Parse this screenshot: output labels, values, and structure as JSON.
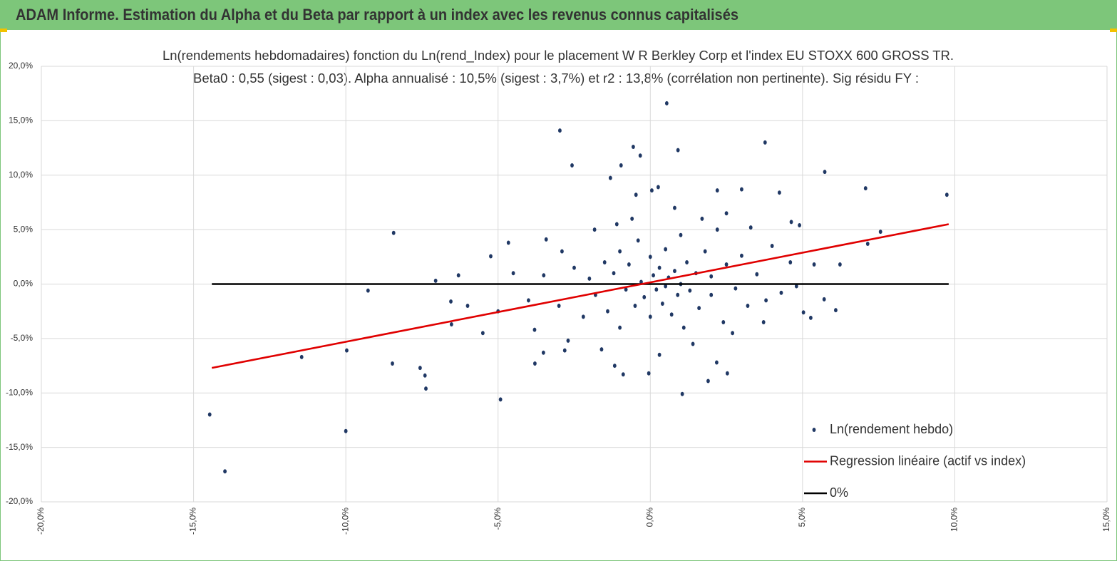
{
  "header": {
    "title": "ADAM Informe. Estimation du Alpha et du Beta par rapport à un index avec les revenus connus capitalisés"
  },
  "chart_data": {
    "type": "scatter",
    "title": "Ln(rendements hebdomadaires) fonction du Ln(rend_Index) pour le placement W R Berkley Corp et l'index EU STOXX 600 GROSS TR.",
    "subtitle": "Beta0 : 0,55  (sigest : 0,03).  Alpha annualisé : 10,5% (sigest :  3,7%) et r2 : 13,8% (corrélation non pertinente). Sig résidu FY :",
    "xlim": [
      -20,
      15
    ],
    "ylim": [
      -20,
      20
    ],
    "xticks": [
      {
        "value": -20,
        "label": "-20,0%"
      },
      {
        "value": -15,
        "label": "-15,0%"
      },
      {
        "value": -10,
        "label": "-10,0%"
      },
      {
        "value": -5,
        "label": "-5,0%"
      },
      {
        "value": 0,
        "label": "0,0%"
      },
      {
        "value": 5,
        "label": "5,0%"
      },
      {
        "value": 10,
        "label": "10,0%"
      },
      {
        "value": 15,
        "label": "15,0%"
      }
    ],
    "yticks": [
      {
        "value": -20,
        "label": "-20,0%"
      },
      {
        "value": -15,
        "label": "-15,0%"
      },
      {
        "value": -10,
        "label": "-10,0%"
      },
      {
        "value": -5,
        "label": "-5,0%"
      },
      {
        "value": 0,
        "label": "0,0%"
      },
      {
        "value": 5,
        "label": "5,0%"
      },
      {
        "value": 10,
        "label": "10,0%"
      },
      {
        "value": 15,
        "label": "15,0%"
      },
      {
        "value": 20,
        "label": "20,0%"
      }
    ],
    "grid": true,
    "legend": "bottom-right",
    "series": [
      {
        "name": "Ln(rendement hebdo)",
        "color": "#203864",
        "style": "markers",
        "x": [
          -14.47,
          -13.97,
          -11.45,
          -9.97,
          -10.0,
          -9.27,
          -8.47,
          -8.43,
          -7.56,
          -7.4,
          -7.37,
          -7.05,
          -6.55,
          -6.53,
          -6.3,
          -4.92,
          -5.24,
          -4.66,
          -2.97,
          -2.57,
          -1.31,
          -0.96,
          -0.56,
          -0.33,
          0.54,
          0.91,
          -0.47,
          0.05,
          0.26,
          3.77,
          5.73,
          7.07,
          9.74,
          7.56,
          7.14,
          6.23,
          6.09,
          5.71,
          5.27,
          5.03,
          5.38,
          3.0,
          4.24,
          2.2,
          1.05,
          1.9,
          2.53,
          2.18,
          -0.05,
          -0.89,
          -1.17,
          -3.79,
          -3.51,
          -2.81,
          -1.83,
          -3.42,
          3.72,
          4.63,
          -4,
          -3.5,
          -3,
          -2.5,
          -2.2,
          -2,
          -1.8,
          -1.5,
          -1.4,
          -1.2,
          -1,
          -1,
          -0.8,
          -0.7,
          -0.5,
          -0.4,
          -0.3,
          -0.2,
          0,
          0,
          0.1,
          0.2,
          0.3,
          0.4,
          0.5,
          0.5,
          0.6,
          0.7,
          0.8,
          0.9,
          1,
          1,
          1.1,
          1.2,
          1.3,
          1.5,
          1.6,
          1.8,
          2,
          2,
          2.2,
          2.4,
          2.5,
          2.8,
          3,
          3.2,
          3.5,
          3.8,
          4,
          4.3,
          4.6,
          -5.5,
          -5,
          -4.5,
          -6,
          -3.8,
          -2.7,
          -1.6,
          0.3,
          1.4,
          2.7,
          -0.6,
          0.8,
          1.7,
          2.5,
          -1.1,
          3.3,
          -2.9,
          4.9,
          4.8
        ],
        "values": [
          -11.98,
          -17.2,
          -6.7,
          -6.1,
          -13.5,
          -0.6,
          -7.3,
          4.7,
          -7.7,
          -8.4,
          -9.6,
          0.3,
          -1.6,
          -3.7,
          0.8,
          -10.6,
          2.55,
          3.8,
          14.1,
          10.9,
          9.75,
          10.9,
          12.6,
          11.8,
          16.6,
          12.3,
          8.2,
          8.6,
          8.9,
          13.0,
          10.3,
          8.8,
          8.2,
          4.8,
          3.7,
          1.8,
          -2.4,
          -1.4,
          -3.1,
          -2.6,
          1.8,
          8.7,
          8.4,
          8.6,
          -10.1,
          -8.9,
          -8.2,
          -7.2,
          -8.2,
          -8.3,
          -7.5,
          -7.3,
          -6.3,
          -6.1,
          5.0,
          4.1,
          -3.5,
          5.7,
          -1.5,
          0.8,
          -2,
          1.5,
          -3,
          0.5,
          -1,
          2,
          -2.5,
          1,
          -4,
          3,
          -0.5,
          1.8,
          -2,
          4,
          0.2,
          -1.2,
          2.5,
          -3,
          0.8,
          -0.5,
          1.5,
          -1.8,
          3.2,
          -0.2,
          0.6,
          -2.8,
          1.2,
          -1,
          4.5,
          0,
          -4,
          2,
          -0.6,
          1,
          -2.2,
          3,
          -1,
          0.7,
          5,
          -3.5,
          1.8,
          -0.4,
          2.6,
          -2,
          0.9,
          -1.5,
          3.5,
          -0.8,
          2,
          -4.5,
          -2.5,
          1,
          -2,
          -4.2,
          -5.2,
          -6,
          -6.5,
          -5.5,
          -4.5,
          6,
          7,
          6,
          6.5,
          5.5,
          5.2,
          3,
          5.4,
          -0.2
        ]
      },
      {
        "name": "Regression linéaire (actif vs index)",
        "color": "#e00000",
        "style": "line",
        "x": [
          -14.4,
          9.8
        ],
        "values": [
          -7.7,
          5.5
        ]
      },
      {
        "name": "0%",
        "color": "#000000",
        "style": "line",
        "x": [
          -14.4,
          9.8
        ],
        "values": [
          0,
          0
        ]
      }
    ]
  }
}
